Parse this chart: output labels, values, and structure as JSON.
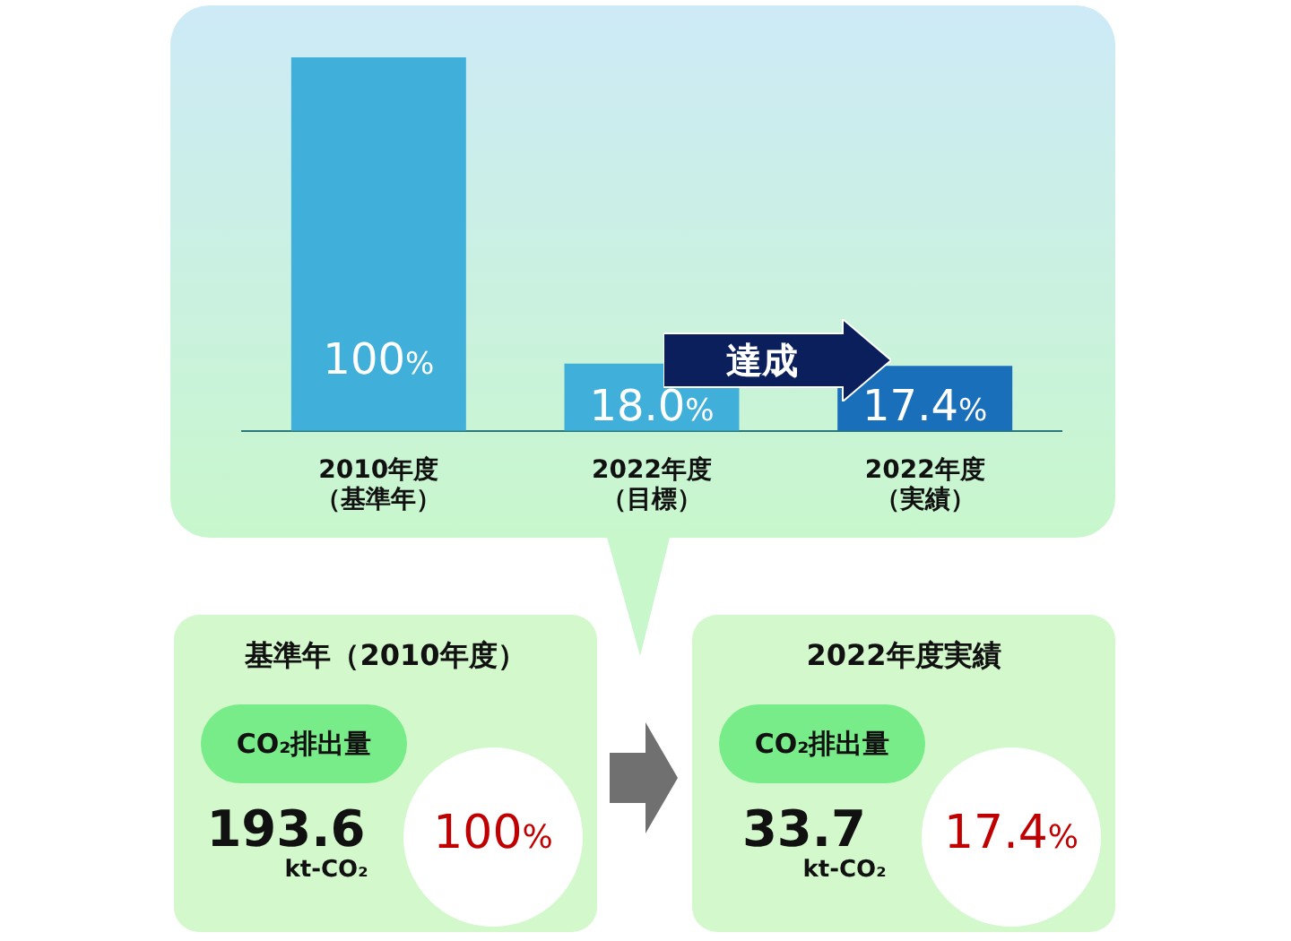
{
  "chart_data": [
    {
      "type": "bar",
      "categories": [
        "2010年度（基準年）",
        "2022年度（目標）",
        "2022年度（実績）"
      ],
      "values": [
        100,
        18.0,
        17.4
      ],
      "colors": [
        "#40b0da",
        "#40b0da",
        "#1a6fbb"
      ],
      "value_labels": [
        "100%",
        "18.0%",
        "17.4%"
      ],
      "annotations": [
        "達成"
      ]
    },
    {
      "type": "other",
      "title": "基準年（2010年度）",
      "annotations": [
        "CO₂排出量",
        "193.6",
        "kt-CO₂",
        "100%"
      ]
    },
    {
      "type": "other",
      "title": "2022年度実績",
      "annotations": [
        "CO₂排出量",
        "33.7",
        "kt-CO₂",
        "17.4%"
      ]
    }
  ]
}
